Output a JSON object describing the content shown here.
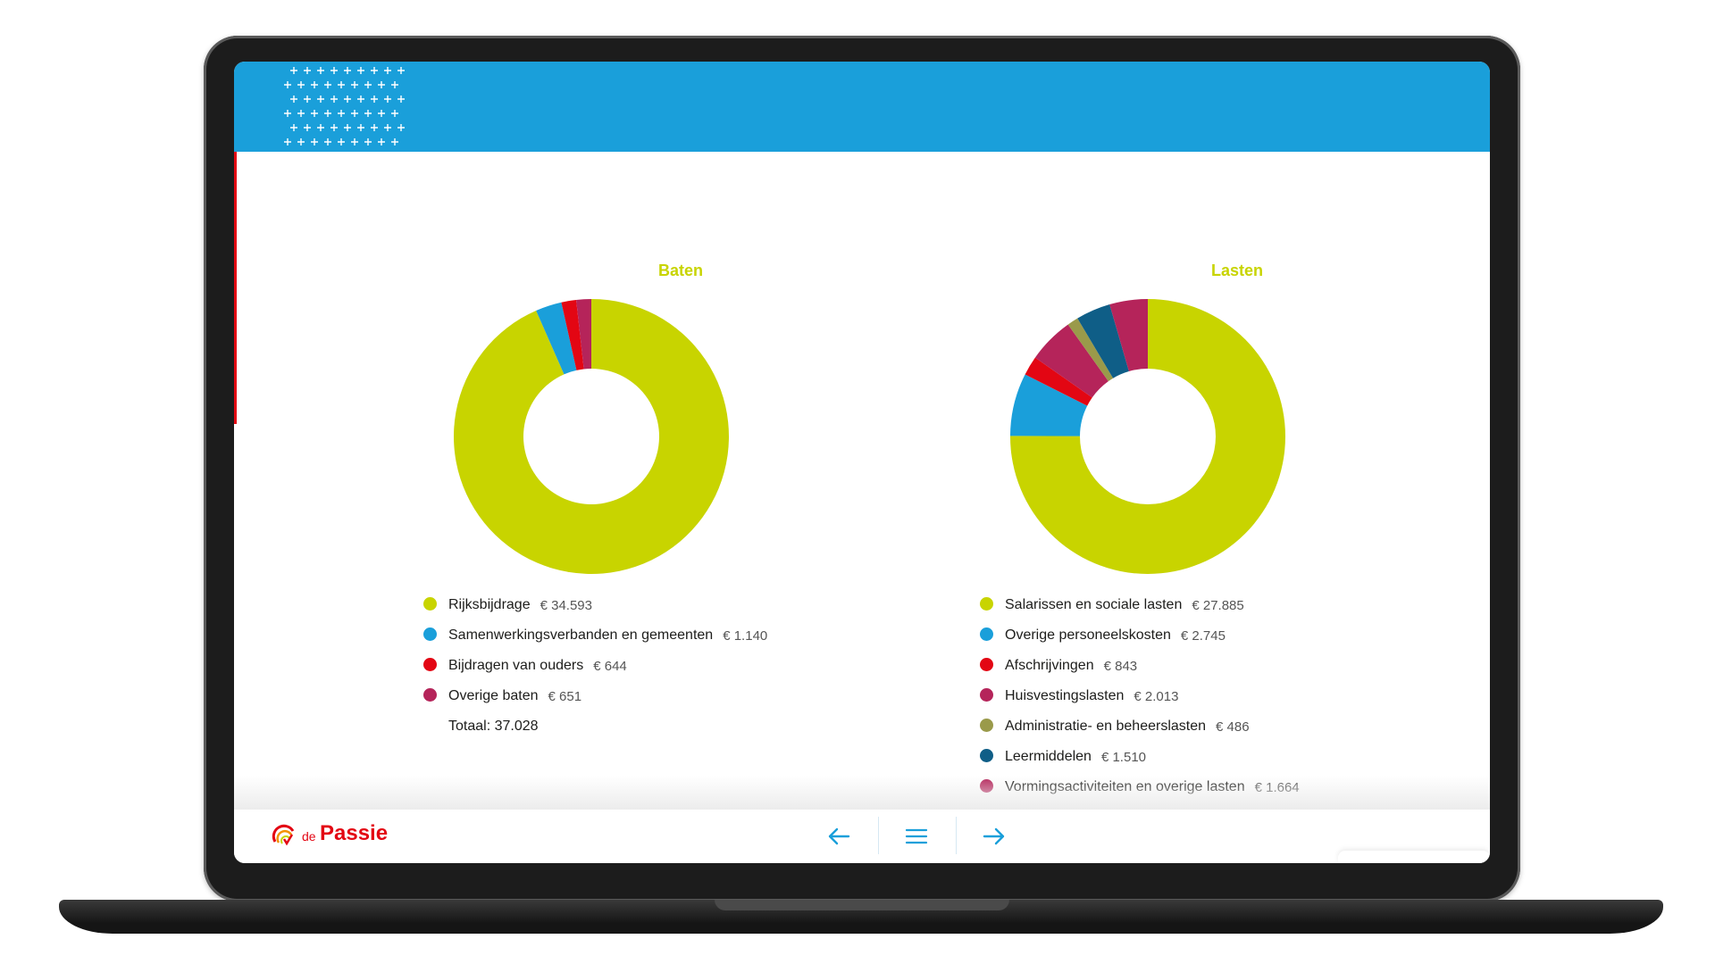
{
  "brand": {
    "logo_small": "de",
    "logo_name": "Passie",
    "header_color": "#1a9fda",
    "accent": "#e30613"
  },
  "nav": {
    "prev_icon": "arrow-left-icon",
    "menu_icon": "menu-icon",
    "next_icon": "arrow-right-icon"
  },
  "chart_data": [
    {
      "type": "pie",
      "title": "Baten",
      "labels": [
        "Rijksbijdrage",
        "Samenwerkingsverbanden en gemeenten",
        "Bijdragen van ouders",
        "Overige baten"
      ],
      "value_labels": [
        "€ 34.593",
        "€ 1.140",
        "€ 644",
        "€ 651"
      ],
      "values": [
        34593,
        1140,
        644,
        651
      ],
      "colors": [
        "#c8d400",
        "#1a9fda",
        "#e30613",
        "#b5245a"
      ],
      "total_label": "Totaal: 37.028"
    },
    {
      "type": "pie",
      "title": "Lasten",
      "labels": [
        "Salarissen en sociale lasten",
        "Overige personeelskosten",
        "Afschrijvingen",
        "Huisvestingslasten",
        "Administratie- en beheerslasten",
        "Leermiddelen",
        "Vormingsactiviteiten en overige lasten"
      ],
      "value_labels": [
        "€ 27.885",
        "€ 2.745",
        "€ 843",
        "€ 2.013",
        "€ 486",
        "€ 1.510",
        "€ 1.664"
      ],
      "values": [
        27885,
        2745,
        843,
        2013,
        486,
        1510,
        1664
      ],
      "colors": [
        "#c8d400",
        "#1a9fda",
        "#e30613",
        "#b5245a",
        "#9a9a4a",
        "#0f5e87",
        "#b5245a"
      ]
    }
  ]
}
